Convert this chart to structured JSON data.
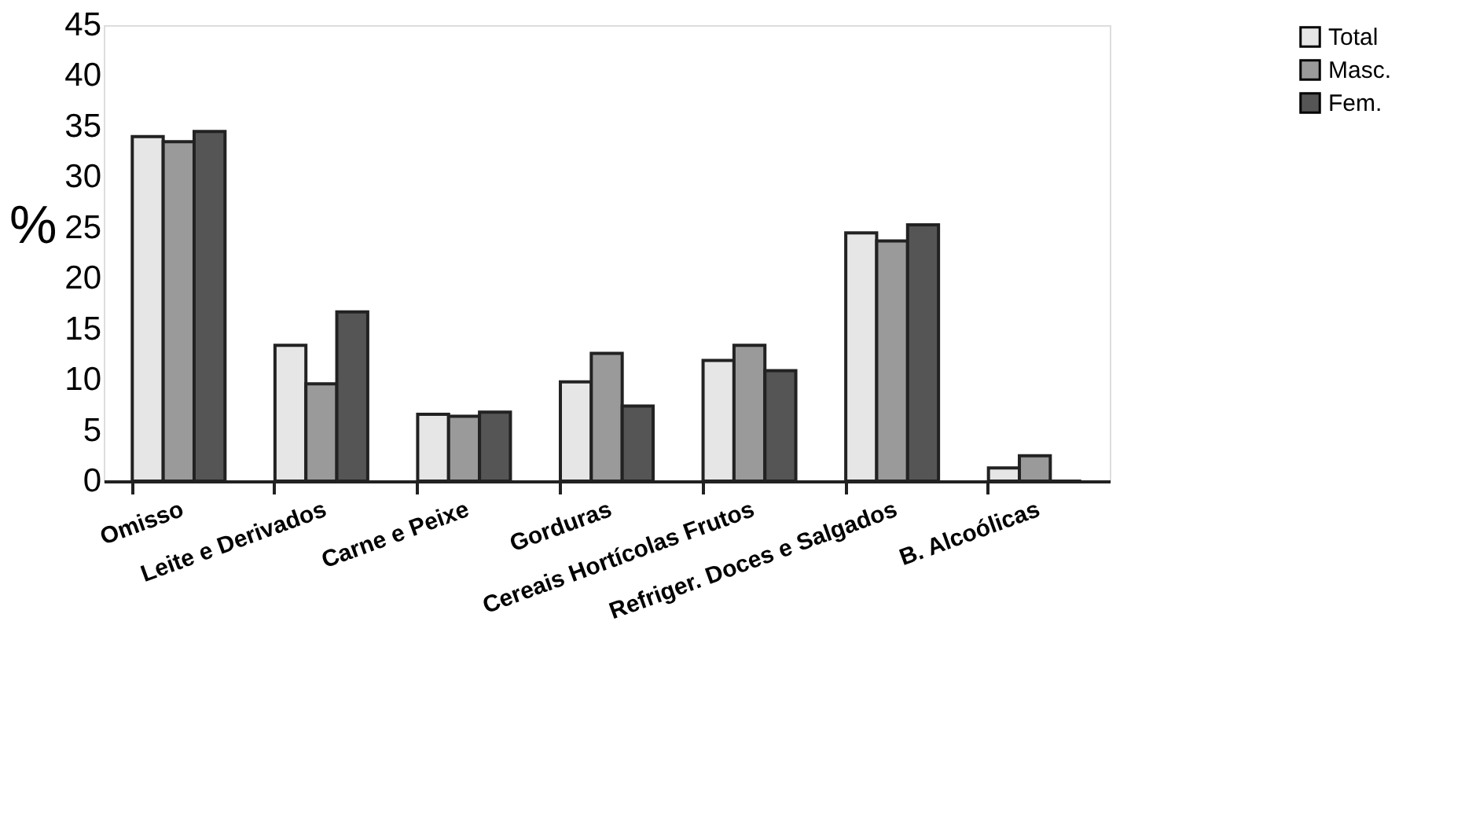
{
  "chart_data": {
    "type": "bar",
    "ylabel": "%",
    "categories": [
      "Omisso",
      "Leite e Derivados",
      "Carne e Peixe",
      "Gorduras",
      "Cereais Hortícolas Frutos",
      "Refriger. Doces e Salgados",
      "B. Alcoólicas"
    ],
    "series": [
      {
        "name": "Total",
        "color": "#e6e6e6",
        "values": [
          34.0,
          13.4,
          6.6,
          9.8,
          11.9,
          24.5,
          1.3
        ]
      },
      {
        "name": "Masc.",
        "color": "#9a9a9a",
        "values": [
          33.5,
          9.6,
          6.4,
          12.6,
          13.4,
          23.7,
          2.5
        ]
      },
      {
        "name": "Fem.",
        "color": "#555555",
        "values": [
          34.5,
          16.7,
          6.8,
          7.4,
          10.9,
          25.3,
          0
        ]
      }
    ],
    "ylim": [
      0,
      45
    ],
    "yticks": [
      0,
      5,
      10,
      15,
      20,
      25,
      30,
      35,
      40,
      45
    ],
    "grid": false,
    "legend": "top right"
  }
}
